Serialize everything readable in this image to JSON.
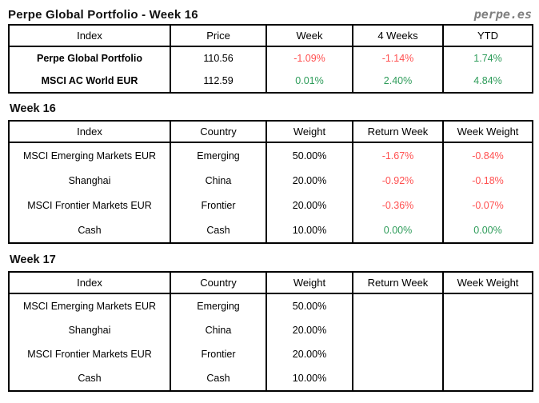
{
  "header": {
    "title": "Perpe Global Portfolio - Week 16",
    "site": "perpe.es"
  },
  "colors": {
    "negative_red": "#ff5050",
    "positive_green": "#2e9c5a",
    "brand_gray": "#7f7f7f",
    "border_black": "#000000"
  },
  "summary": {
    "columns": [
      "Index",
      "Price",
      "Week",
      "4 Weeks",
      "YTD"
    ],
    "rows": [
      [
        "Perpe Global Portfolio",
        "110.56",
        "-1.09%",
        "-1.14%",
        "1.74%"
      ],
      [
        "MSCI AC World EUR",
        "112.59",
        "0.01%",
        "2.40%",
        "4.84%"
      ]
    ]
  },
  "week16": {
    "heading": "Week 16",
    "columns": [
      "Index",
      "Country",
      "Weight",
      "Return Week",
      "Week Weight"
    ],
    "rows": [
      [
        "MSCI Emerging Markets EUR",
        "Emerging",
        "50.00%",
        "-1.67%",
        "-0.84%"
      ],
      [
        "Shanghai",
        "China",
        "20.00%",
        "-0.92%",
        "-0.18%"
      ],
      [
        "MSCI Frontier Markets EUR",
        "Frontier",
        "20.00%",
        "-0.36%",
        "-0.07%"
      ],
      [
        "Cash",
        "Cash",
        "10.00%",
        "0.00%",
        "0.00%"
      ]
    ]
  },
  "week17": {
    "heading": "Week 17",
    "columns": [
      "Index",
      "Country",
      "Weight",
      "Return Week",
      "Week Weight"
    ],
    "rows": [
      [
        "MSCI Emerging Markets EUR",
        "Emerging",
        "50.00%",
        "",
        ""
      ],
      [
        "Shanghai",
        "China",
        "20.00%",
        "",
        ""
      ],
      [
        "MSCI Frontier Markets EUR",
        "Frontier",
        "20.00%",
        "",
        ""
      ],
      [
        "Cash",
        "Cash",
        "10.00%",
        "",
        ""
      ]
    ]
  }
}
